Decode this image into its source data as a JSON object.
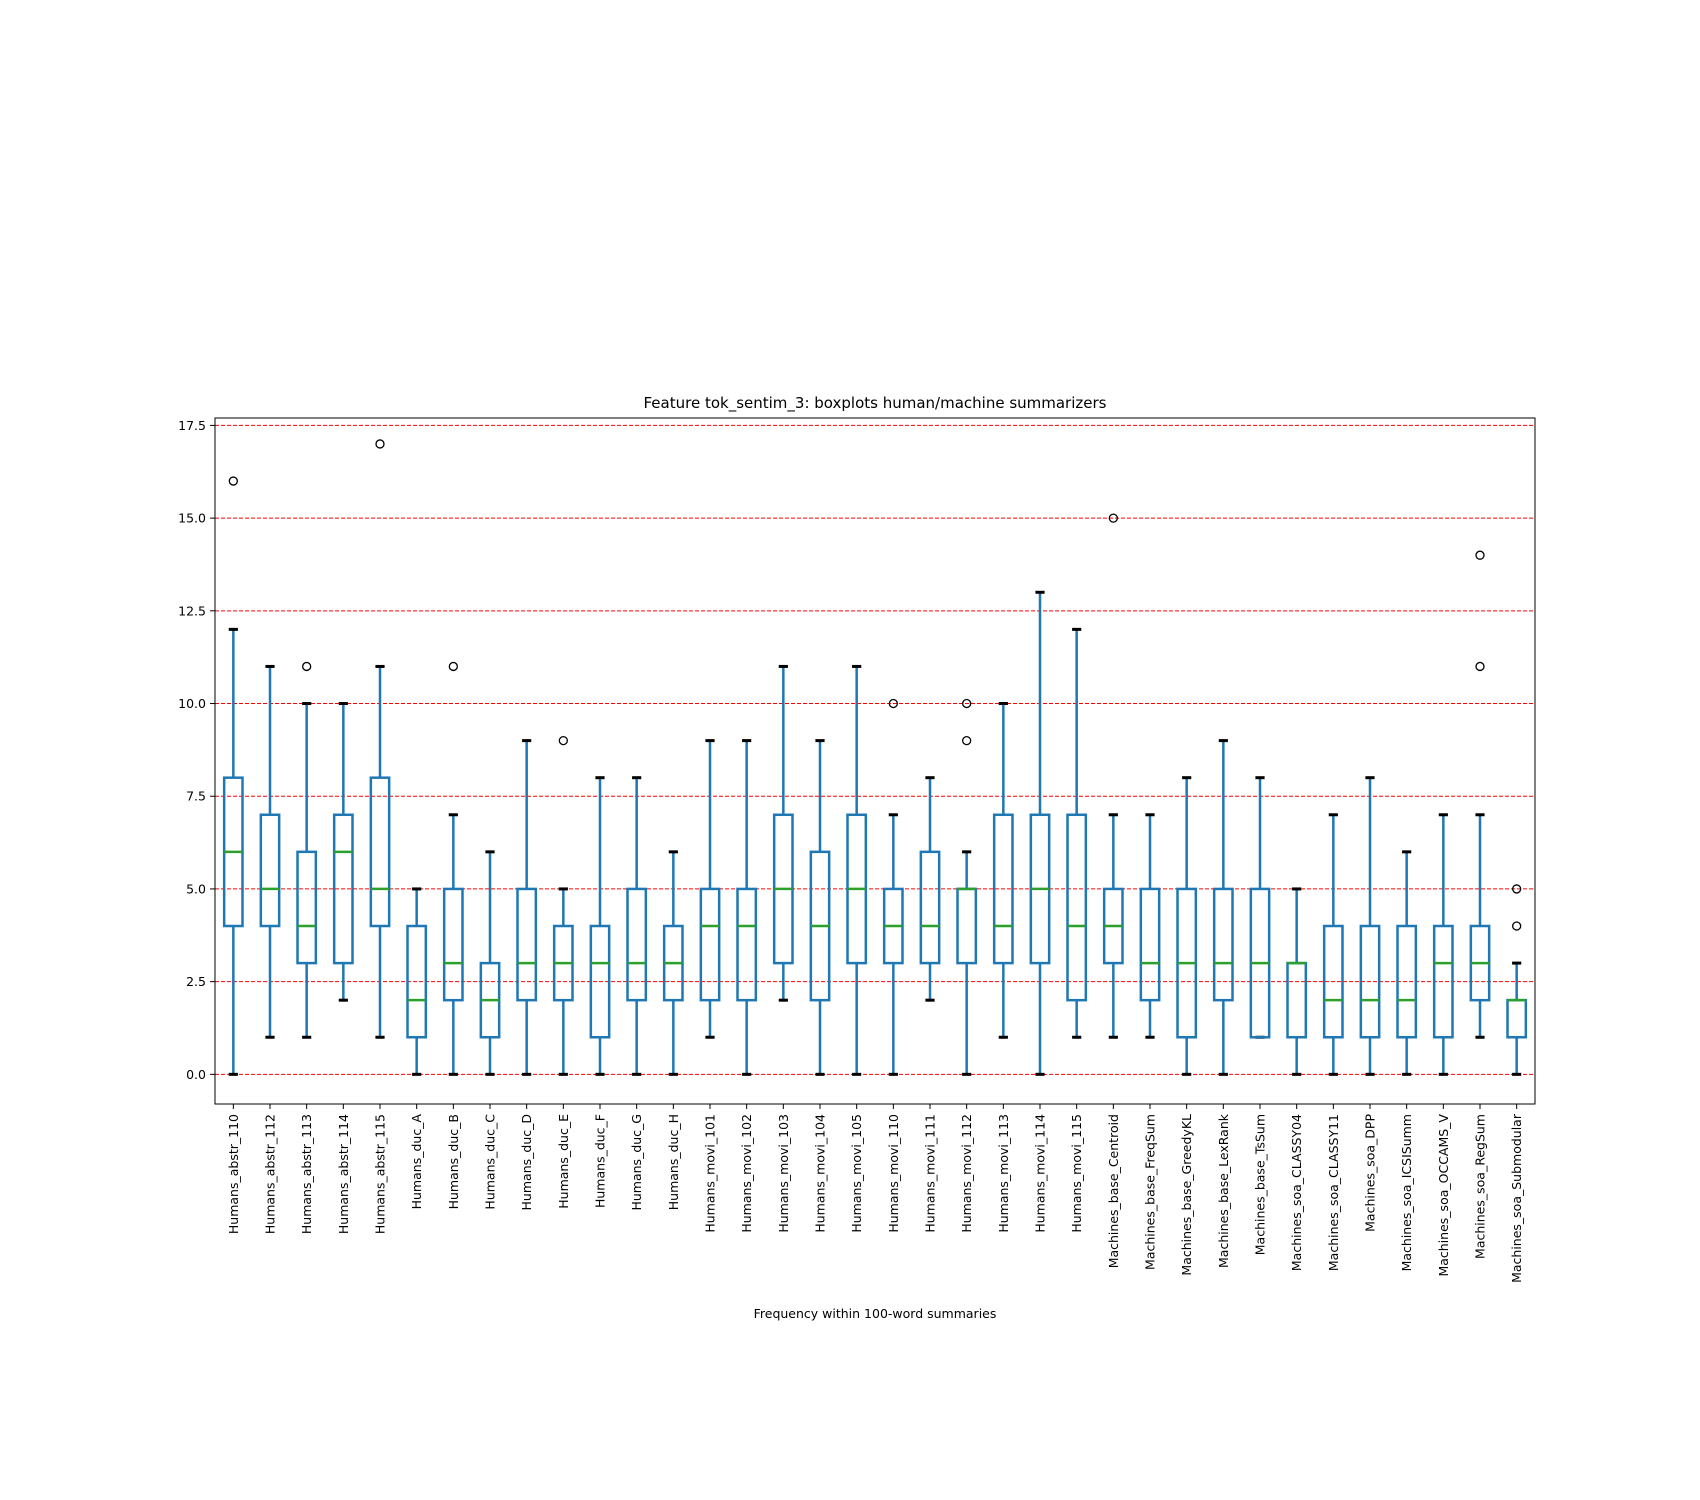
{
  "chart_data": {
    "type": "boxplot",
    "title": "Feature tok_sentim_3: boxplots human/machine summarizers",
    "xlabel": "Frequency within 100-word summaries",
    "ylabel": "",
    "ylim": [
      -0.8,
      17.7
    ],
    "yticks": [
      0.0,
      2.5,
      5.0,
      7.5,
      10.0,
      12.5,
      15.0,
      17.5
    ],
    "ytick_labels": [
      "0.0",
      "2.5",
      "5.0",
      "7.5",
      "10.0",
      "12.5",
      "15.0",
      "17.5"
    ],
    "grid": "horizontal dashed red",
    "colors": {
      "box": "#1f77b4",
      "median": "#2ca02c",
      "cap": "#000000",
      "grid": "#ff0000"
    },
    "categories": [
      "Humans_abstr_110",
      "Humans_abstr_112",
      "Humans_abstr_113",
      "Humans_abstr_114",
      "Humans_abstr_115",
      "Humans_duc_A",
      "Humans_duc_B",
      "Humans_duc_C",
      "Humans_duc_D",
      "Humans_duc_E",
      "Humans_duc_F",
      "Humans_duc_G",
      "Humans_duc_H",
      "Humans_movi_101",
      "Humans_movi_102",
      "Humans_movi_103",
      "Humans_movi_104",
      "Humans_movi_105",
      "Humans_movi_110",
      "Humans_movi_111",
      "Humans_movi_112",
      "Humans_movi_113",
      "Humans_movi_114",
      "Humans_movi_115",
      "Machines_base_Centroid",
      "Machines_base_FreqSum",
      "Machines_base_GreedyKL",
      "Machines_base_LexRank",
      "Machines_base_TsSum",
      "Machines_soa_CLASSY04",
      "Machines_soa_CLASSY11",
      "Machines_soa_DPP",
      "Machines_soa_ICSISumm",
      "Machines_soa_OCCAMS_V",
      "Machines_soa_RegSum",
      "Machines_soa_Submodular"
    ],
    "boxes": [
      {
        "whislo": 0,
        "q1": 4,
        "med": 6,
        "q3": 8,
        "whishi": 12,
        "fliers": [
          16
        ]
      },
      {
        "whislo": 1,
        "q1": 4,
        "med": 5,
        "q3": 7,
        "whishi": 11,
        "fliers": []
      },
      {
        "whislo": 1,
        "q1": 3,
        "med": 4,
        "q3": 6,
        "whishi": 10,
        "fliers": [
          11
        ]
      },
      {
        "whislo": 2,
        "q1": 3,
        "med": 6,
        "q3": 7,
        "whishi": 10,
        "fliers": []
      },
      {
        "whislo": 1,
        "q1": 4,
        "med": 5,
        "q3": 8,
        "whishi": 11,
        "fliers": [
          17
        ]
      },
      {
        "whislo": 0,
        "q1": 1,
        "med": 2,
        "q3": 4,
        "whishi": 5,
        "fliers": []
      },
      {
        "whislo": 0,
        "q1": 2,
        "med": 3,
        "q3": 5,
        "whishi": 7,
        "fliers": [
          11
        ]
      },
      {
        "whislo": 0,
        "q1": 1,
        "med": 2,
        "q3": 3,
        "whishi": 6,
        "fliers": []
      },
      {
        "whislo": 0,
        "q1": 2,
        "med": 3,
        "q3": 5,
        "whishi": 9,
        "fliers": []
      },
      {
        "whislo": 0,
        "q1": 2,
        "med": 3,
        "q3": 4,
        "whishi": 5,
        "fliers": [
          9
        ]
      },
      {
        "whislo": 0,
        "q1": 1,
        "med": 3,
        "q3": 4,
        "whishi": 8,
        "fliers": []
      },
      {
        "whislo": 0,
        "q1": 2,
        "med": 3,
        "q3": 5,
        "whishi": 8,
        "fliers": []
      },
      {
        "whislo": 0,
        "q1": 2,
        "med": 3,
        "q3": 4,
        "whishi": 6,
        "fliers": []
      },
      {
        "whislo": 1,
        "q1": 2,
        "med": 4,
        "q3": 5,
        "whishi": 9,
        "fliers": []
      },
      {
        "whislo": 0,
        "q1": 2,
        "med": 4,
        "q3": 5,
        "whishi": 9,
        "fliers": []
      },
      {
        "whislo": 2,
        "q1": 3,
        "med": 5,
        "q3": 7,
        "whishi": 11,
        "fliers": []
      },
      {
        "whislo": 0,
        "q1": 2,
        "med": 4,
        "q3": 6,
        "whishi": 9,
        "fliers": []
      },
      {
        "whislo": 0,
        "q1": 3,
        "med": 5,
        "q3": 7,
        "whishi": 11,
        "fliers": []
      },
      {
        "whislo": 0,
        "q1": 3,
        "med": 4,
        "q3": 5,
        "whishi": 7,
        "fliers": [
          10
        ]
      },
      {
        "whislo": 2,
        "q1": 3,
        "med": 4,
        "q3": 6,
        "whishi": 8,
        "fliers": []
      },
      {
        "whislo": 0,
        "q1": 3,
        "med": 5,
        "q3": 5,
        "whishi": 6,
        "fliers": [
          10,
          9
        ]
      },
      {
        "whislo": 1,
        "q1": 3,
        "med": 4,
        "q3": 7,
        "whishi": 10,
        "fliers": []
      },
      {
        "whislo": 0,
        "q1": 3,
        "med": 5,
        "q3": 7,
        "whishi": 13,
        "fliers": []
      },
      {
        "whislo": 1,
        "q1": 2,
        "med": 4,
        "q3": 7,
        "whishi": 12,
        "fliers": []
      },
      {
        "whislo": 1,
        "q1": 3,
        "med": 4,
        "q3": 5,
        "whishi": 7,
        "fliers": [
          15
        ]
      },
      {
        "whislo": 1,
        "q1": 2,
        "med": 3,
        "q3": 5,
        "whishi": 7,
        "fliers": []
      },
      {
        "whislo": 0,
        "q1": 1,
        "med": 3,
        "q3": 5,
        "whishi": 8,
        "fliers": []
      },
      {
        "whislo": 0,
        "q1": 2,
        "med": 3,
        "q3": 5,
        "whishi": 9,
        "fliers": []
      },
      {
        "whislo": 1,
        "q1": 1,
        "med": 3,
        "q3": 5,
        "whishi": 8,
        "fliers": []
      },
      {
        "whislo": 0,
        "q1": 1,
        "med": 3,
        "q3": 3,
        "whishi": 5,
        "fliers": []
      },
      {
        "whislo": 0,
        "q1": 1,
        "med": 2,
        "q3": 4,
        "whishi": 7,
        "fliers": []
      },
      {
        "whislo": 0,
        "q1": 1,
        "med": 2,
        "q3": 4,
        "whishi": 8,
        "fliers": []
      },
      {
        "whislo": 0,
        "q1": 1,
        "med": 2,
        "q3": 4,
        "whishi": 6,
        "fliers": []
      },
      {
        "whislo": 0,
        "q1": 1,
        "med": 3,
        "q3": 4,
        "whishi": 7,
        "fliers": []
      },
      {
        "whislo": 1,
        "q1": 2,
        "med": 3,
        "q3": 4,
        "whishi": 7,
        "fliers": [
          14,
          11
        ]
      },
      {
        "whislo": 0,
        "q1": 1,
        "med": 2,
        "q3": 2,
        "whishi": 3,
        "fliers": [
          5,
          4
        ]
      }
    ]
  }
}
